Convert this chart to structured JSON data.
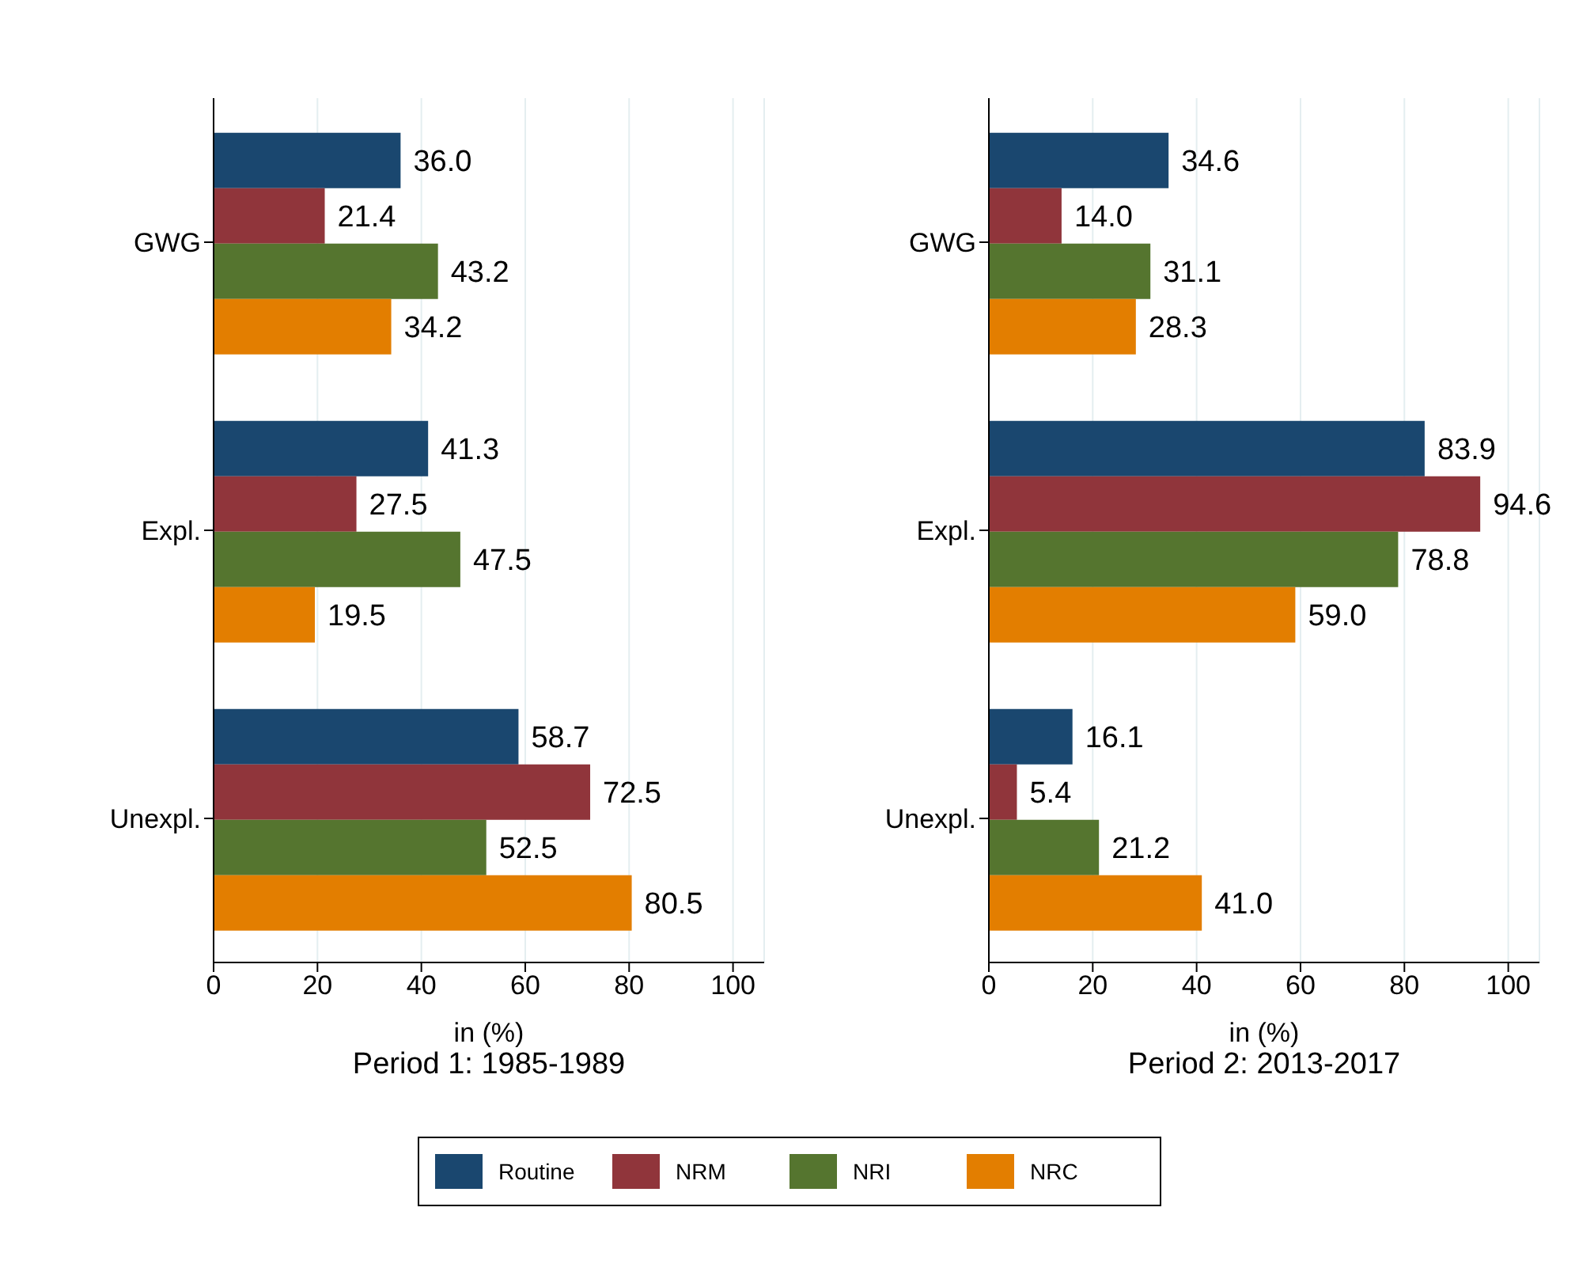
{
  "chart_data": [
    {
      "type": "bar",
      "orientation": "horizontal",
      "title": "Period 1: 1985-1989",
      "xlabel": "in (%)",
      "categories": [
        "GWG",
        "Expl.",
        "Unexpl."
      ],
      "xlim": [
        0,
        106
      ],
      "xticks": [
        0,
        20,
        40,
        60,
        80,
        100
      ],
      "grid": "x",
      "legend": "bottom",
      "series": [
        {
          "name": "Routine",
          "color": "#1a476f",
          "values": [
            36.0,
            41.3,
            58.7
          ],
          "value_labels": [
            "36.0",
            "41.3",
            "58.7"
          ]
        },
        {
          "name": "NRM",
          "color": "#90353b",
          "values": [
            21.4,
            27.5,
            72.5
          ],
          "value_labels": [
            "21.4",
            "27.5",
            "72.5"
          ]
        },
        {
          "name": "NRI",
          "color": "#55752f",
          "values": [
            43.2,
            47.5,
            52.5
          ],
          "value_labels": [
            "43.2",
            "47.5",
            "52.5"
          ]
        },
        {
          "name": "NRC",
          "color": "#e37e00",
          "values": [
            34.2,
            19.5,
            80.5
          ],
          "value_labels": [
            "34.2",
            "19.5",
            "80.5"
          ]
        }
      ]
    },
    {
      "type": "bar",
      "orientation": "horizontal",
      "title": "Period 2: 2013-2017",
      "xlabel": "in (%)",
      "categories": [
        "GWG",
        "Expl.",
        "Unexpl."
      ],
      "xlim": [
        0,
        106
      ],
      "xticks": [
        0,
        20,
        40,
        60,
        80,
        100
      ],
      "grid": "x",
      "series": [
        {
          "color": "#1a476f",
          "values": [
            34.6,
            83.9,
            16.1
          ],
          "value_labels": [
            "34.6",
            "83.9",
            "16.1"
          ]
        },
        {
          "color": "#90353b",
          "values": [
            14.0,
            94.6,
            5.4
          ],
          "value_labels": [
            "14.0",
            "94.6",
            "5.4"
          ]
        },
        {
          "color": "#55752f",
          "values": [
            31.1,
            78.8,
            21.2
          ],
          "value_labels": [
            "31.1",
            "78.8",
            "21.2"
          ]
        },
        {
          "color": "#e37e00",
          "values": [
            28.3,
            59.0,
            41.0
          ],
          "value_labels": [
            "28.3",
            "59.0",
            "41.0"
          ]
        }
      ]
    }
  ]
}
